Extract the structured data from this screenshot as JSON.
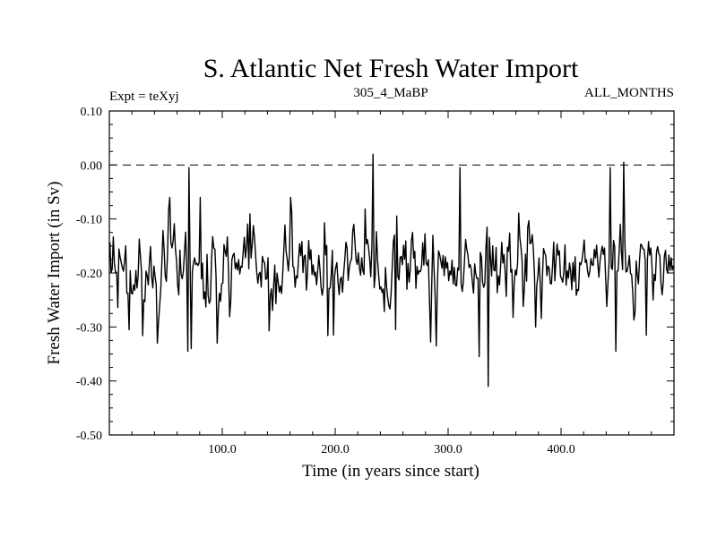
{
  "chart_data": {
    "type": "line",
    "title": "S. Atlantic Net Fresh Water Import",
    "subtitle_left": "Expt = teXyj",
    "subtitle_center": "305_4_MaBP",
    "subtitle_right": "ALL_MONTHS",
    "xlabel": "Time (in years since start)",
    "ylabel": "Fresh Water Import (in Sv)",
    "xlim": [
      0,
      500
    ],
    "ylim": [
      -0.5,
      0.1
    ],
    "xticks": [
      100,
      200,
      300,
      400
    ],
    "xtick_labels": [
      "100.0",
      "200.0",
      "300.0",
      "400.0"
    ],
    "yticks": [
      0.1,
      0.0,
      -0.1,
      -0.2,
      -0.3,
      -0.4,
      -0.5
    ],
    "ytick_labels": [
      "0.10",
      "0.00",
      "-0.10",
      "-0.20",
      "-0.30",
      "-0.40",
      "-0.50"
    ],
    "reference_line": {
      "y": 0.0,
      "style": "dashed"
    },
    "grid": false,
    "line_color": "#000000",
    "series": [
      {
        "generator": "deterministic-noise",
        "n": 500,
        "mean": -0.19,
        "noise_amplitude": 0.075,
        "extremes": [
          {
            "x": 70,
            "y": -0.005
          },
          {
            "x": 69,
            "y": -0.345
          },
          {
            "x": 72,
            "y": -0.34
          },
          {
            "x": 233,
            "y": 0.02
          },
          {
            "x": 310,
            "y": -0.005
          },
          {
            "x": 335,
            "y": -0.41
          },
          {
            "x": 327,
            "y": -0.355
          },
          {
            "x": 289,
            "y": -0.335
          },
          {
            "x": 443,
            "y": -0.005
          },
          {
            "x": 455,
            "y": 0.005
          },
          {
            "x": 448,
            "y": -0.345
          },
          {
            "x": 17,
            "y": -0.305
          },
          {
            "x": 475,
            "y": -0.315
          },
          {
            "x": 253,
            "y": -0.305
          },
          {
            "x": 198,
            "y": -0.315
          }
        ]
      }
    ]
  }
}
